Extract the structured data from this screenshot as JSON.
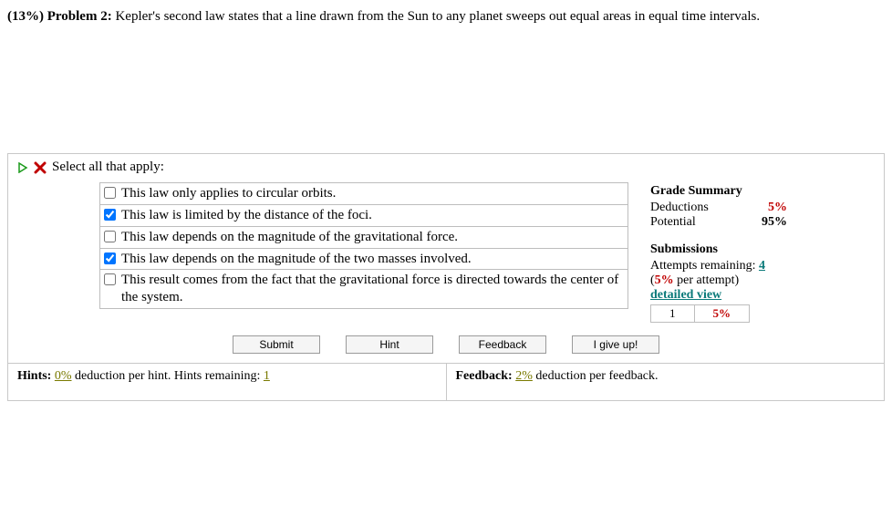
{
  "problem": {
    "percent_label": "(13%)",
    "title_label": "Problem 2:",
    "statement": "Kepler's second law states that a line drawn from the Sun to any planet sweeps out equal areas in equal time intervals."
  },
  "instruction": "Select all that apply:",
  "choices": [
    {
      "text": "This law only applies to circular orbits.",
      "checked": false
    },
    {
      "text": "This law is limited by the distance of the foci.",
      "checked": true
    },
    {
      "text": "This law depends on the magnitude of the gravitational force.",
      "checked": false
    },
    {
      "text": "This law depends on the magnitude of the two masses involved.",
      "checked": true
    },
    {
      "text": "This result comes from the fact that the gravitational force is directed towards the center of the system.",
      "checked": false
    }
  ],
  "buttons": {
    "submit": "Submit",
    "hint": "Hint",
    "feedback": "Feedback",
    "giveup": "I give up!"
  },
  "grade_summary": {
    "header": "Grade Summary",
    "deductions_label": "Deductions",
    "deductions_value": "5%",
    "potential_label": "Potential",
    "potential_value": "95%"
  },
  "submissions": {
    "header": "Submissions",
    "attempts_label": "Attempts remaining:",
    "attempts_remaining": "4",
    "per_attempt_prefix": "(",
    "per_attempt_value": "5%",
    "per_attempt_suffix": " per attempt)",
    "detailed_view": "detailed view",
    "table": {
      "num": "1",
      "pct": "5%"
    }
  },
  "footer": {
    "hints_label": "Hints:",
    "hints_pct": "0%",
    "hints_mid": " deduction per hint. Hints remaining: ",
    "hints_remaining": "1",
    "feedback_label": "Feedback:",
    "feedback_pct": "2%",
    "feedback_suffix": " deduction per feedback."
  },
  "colors": {
    "border": "#c8c8c8",
    "choice_border": "#bdbdbd",
    "red": "#c00000",
    "teal": "#0b7a7a",
    "olive": "#7a7a00"
  }
}
